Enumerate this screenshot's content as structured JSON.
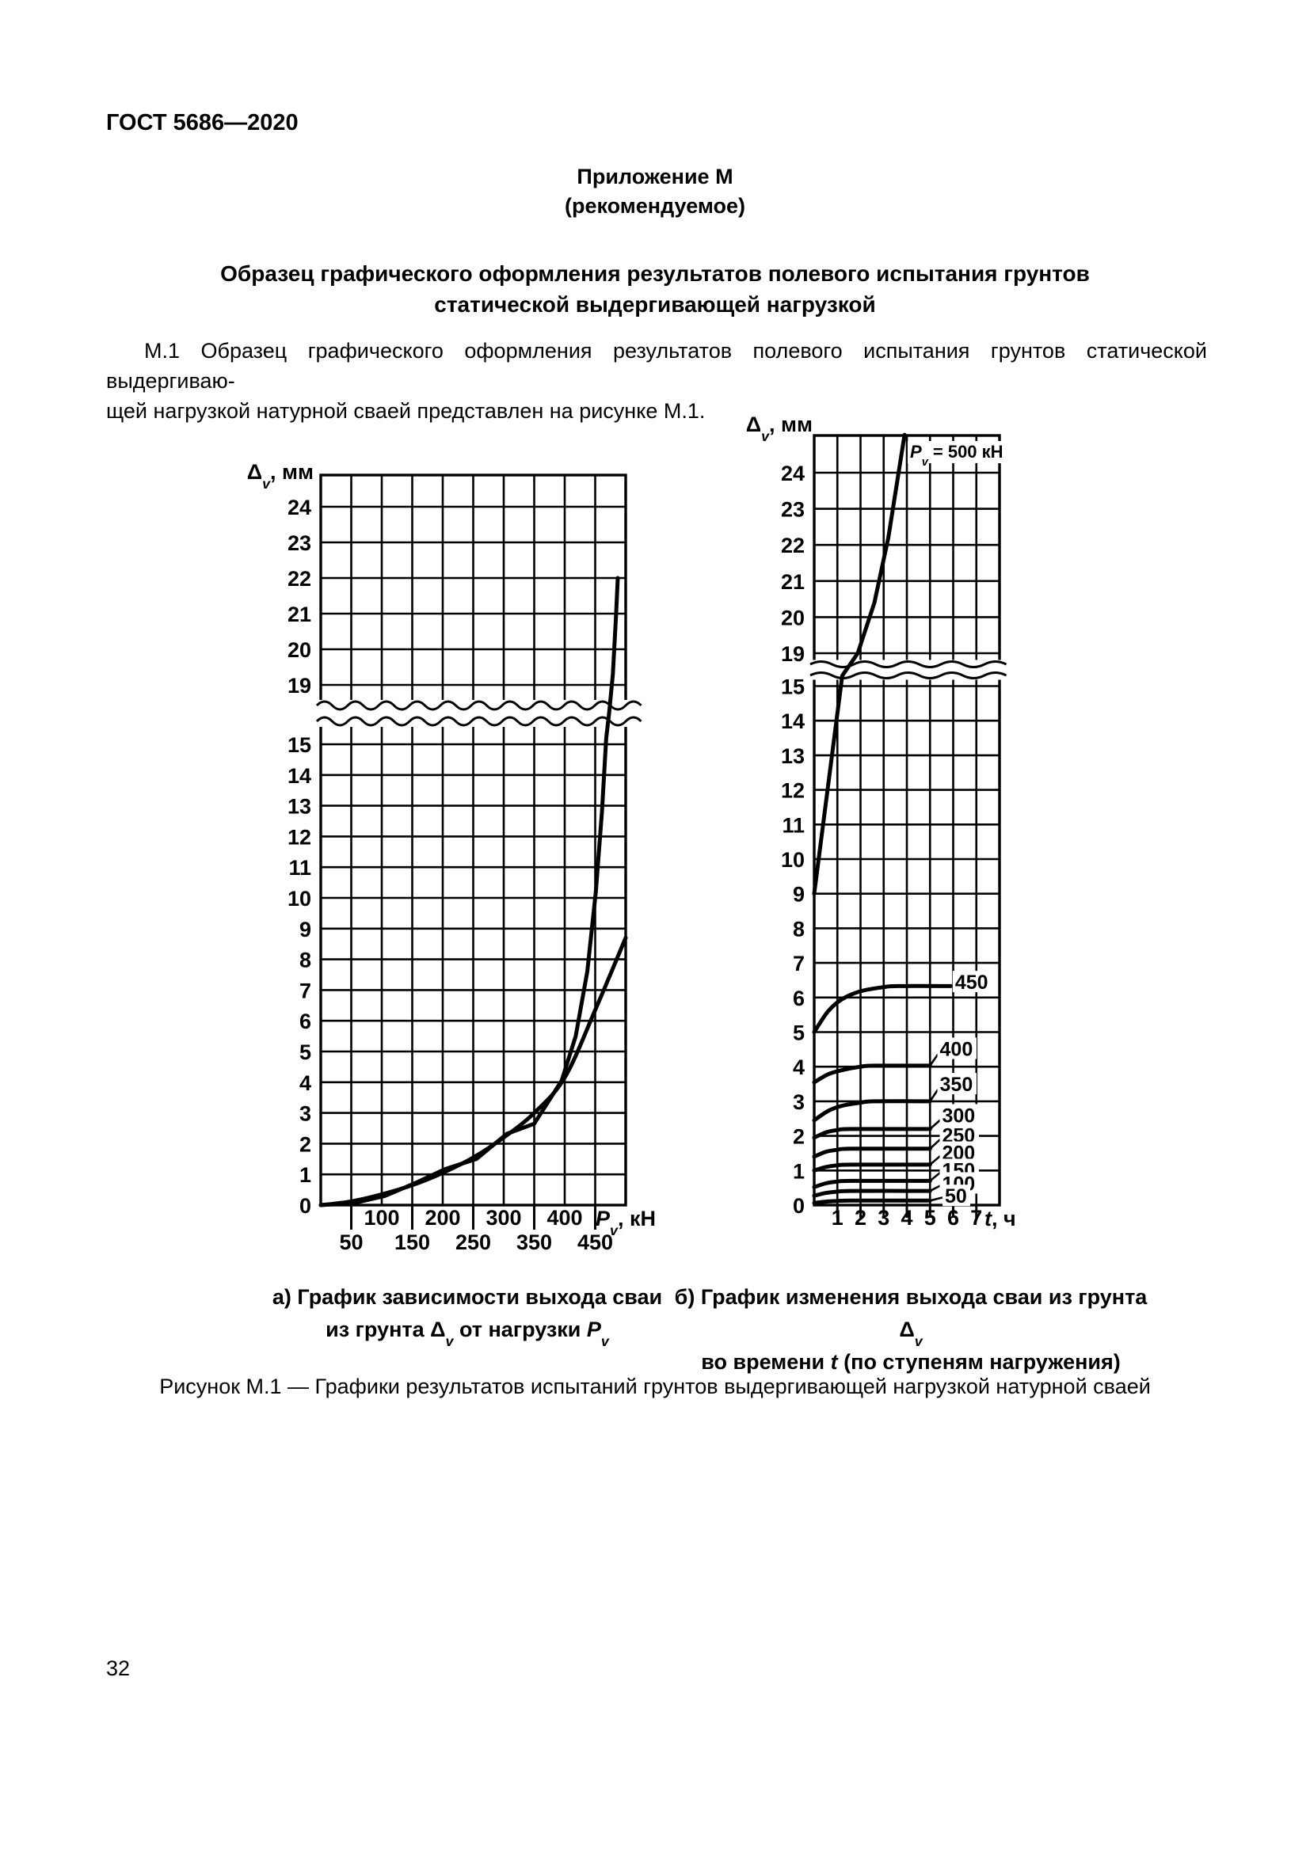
{
  "doc": {
    "number": "ГОСТ 5686—2020",
    "page_number": "32"
  },
  "appendix": {
    "title": "Приложение М",
    "note": "(рекомендуемое)"
  },
  "section_title": {
    "lines": [
      "Образец графического оформления результатов полевого испытания грунтов",
      "статической выдергивающей нагрузкой"
    ]
  },
  "paragraph": {
    "lines": [
      "М.1 Образец графического оформления результатов полевого испытания грунтов статической выдергиваю-",
      "щей нагрузкой натурной сваей представлен на рисунке М.1."
    ]
  },
  "captions": {
    "a": [
      "а) График зависимости выхода сваи",
      "из грунта Δ_v_ от нагрузки *P*_v_"
    ],
    "b": [
      "б) График изменения выхода сваи из грунта Δ_v_",
      "во времени *t* (по ступеням нагружения)"
    ]
  },
  "figure_caption": "Рисунок М.1 — Графики результатов испытаний грунтов выдергивающей нагрузкой натурной сваей",
  "chart_data": [
    {
      "id": "a",
      "type": "line",
      "title": "а) График зависимости выхода сваи из грунта Δv от нагрузки Pv",
      "xlabel": "*P*_v_, кН",
      "ylabel": "Δ_v_, мм",
      "xlim": [
        0,
        500
      ],
      "ylim": [
        0,
        25
      ],
      "y_axis_break": [
        15.75,
        18.42
      ],
      "grid": "on",
      "x_gridline_step_kN": 50,
      "x_tick_labels_row1": [
        100,
        200,
        300,
        400
      ],
      "x_tick_labels_row2": [
        50,
        150,
        250,
        350,
        450
      ],
      "y_tick_labels_lower": [
        0,
        1,
        2,
        3,
        4,
        5,
        6,
        7,
        8,
        9,
        10,
        11,
        12,
        13,
        14,
        15
      ],
      "y_tick_labels_upper": [
        19,
        20,
        21,
        22,
        23,
        24
      ],
      "series": [
        {
          "name": "кривая выхода сваи из грунта (плавная)",
          "smooth": true,
          "points": [
            [
              0,
              0
            ],
            [
              50,
              0.12
            ],
            [
              100,
              0.35
            ],
            [
              150,
              0.65
            ],
            [
              200,
              1.05
            ],
            [
              250,
              1.55
            ],
            [
              300,
              2.2
            ],
            [
              350,
              3.0
            ],
            [
              400,
              4.15
            ],
            [
              450,
              6.35
            ],
            [
              500,
              8.7
            ]
          ]
        },
        {
          "name": "ломаная по ступеням нагружения с ветвью срыва до 22 мм",
          "smooth": false,
          "points": [
            [
              0,
              0
            ],
            [
              55,
              0.07
            ],
            [
              105,
              0.3
            ],
            [
              155,
              0.72
            ],
            [
              205,
              1.18
            ],
            [
              255,
              1.5
            ],
            [
              305,
              2.32
            ],
            [
              350,
              2.65
            ],
            [
              395,
              4.05
            ],
            [
              418,
              5.5
            ],
            [
              437,
              7.6
            ],
            [
              451,
              10.2
            ],
            [
              461,
              12.8
            ],
            [
              468,
              15.2
            ],
            [
              473,
              17.3
            ],
            [
              479,
              19.3
            ],
            [
              484,
              20.9
            ],
            [
              487,
              22.0
            ]
          ]
        }
      ]
    },
    {
      "id": "b",
      "type": "line",
      "title": "б) График изменения выхода сваи из грунта Δv во времени t (по ступеням нагружения)",
      "xlabel": "*t*, ч",
      "ylabel": "Δ_v_, мм",
      "annotation": "*P*_v_ = 500 кН",
      "xlim": [
        0,
        8
      ],
      "ylim": [
        0,
        25.1
      ],
      "y_axis_break": [
        15.3,
        18.68
      ],
      "grid": "on",
      "x_tick_labels": [
        1,
        2,
        3,
        4,
        5,
        6,
        7
      ],
      "y_tick_labels_lower": [
        0,
        1,
        2,
        3,
        4,
        5,
        6,
        7,
        8,
        9,
        10,
        11,
        12,
        13,
        14,
        15
      ],
      "y_tick_labels_upper": [
        19,
        20,
        21,
        22,
        23,
        24
      ],
      "series": [
        {
          "load_kN": 500,
          "smooth": false,
          "points": [
            [
              0,
              9
            ],
            [
              1.21,
              15.3
            ],
            [
              1.88,
              19
            ],
            [
              2.6,
              20.4
            ],
            [
              3.2,
              22.2
            ],
            [
              3.9,
              25.05
            ]
          ]
        },
        {
          "load_kN": 450,
          "label": "450",
          "label_at": [
            6.08,
            6.45
          ],
          "smooth": true,
          "points": [
            [
              0,
              5.0
            ],
            [
              0.6,
              5.6
            ],
            [
              1.2,
              5.95
            ],
            [
              2,
              6.18
            ],
            [
              3,
              6.3
            ],
            [
              3.6,
              6.33
            ],
            [
              5.9,
              6.33
            ]
          ]
        },
        {
          "load_kN": 400,
          "label": "400",
          "label_at": [
            5.42,
            4.52
          ],
          "leader": [
            [
              5,
              4.03
            ],
            [
              5.34,
              4.36
            ]
          ],
          "smooth": true,
          "points": [
            [
              0,
              3.55
            ],
            [
              0.6,
              3.78
            ],
            [
              1.2,
              3.9
            ],
            [
              2,
              4.0
            ],
            [
              2.6,
              4.03
            ],
            [
              5,
              4.03
            ]
          ]
        },
        {
          "load_kN": 350,
          "label": "350",
          "label_at": [
            5.42,
            3.5
          ],
          "leader": [
            [
              5,
              3.0
            ],
            [
              5.34,
              3.34
            ]
          ],
          "smooth": true,
          "points": [
            [
              0,
              2.45
            ],
            [
              0.6,
              2.72
            ],
            [
              1.2,
              2.87
            ],
            [
              2,
              2.96
            ],
            [
              2.6,
              3.0
            ],
            [
              5,
              3.0
            ]
          ]
        },
        {
          "load_kN": 300,
          "label": "300",
          "label_at": [
            5.52,
            2.6
          ],
          "leader": [
            [
              5,
              2.2
            ],
            [
              5.44,
              2.46
            ]
          ],
          "smooth": true,
          "points": [
            [
              0,
              1.95
            ],
            [
              0.5,
              2.1
            ],
            [
              1,
              2.17
            ],
            [
              1.6,
              2.2
            ],
            [
              5,
              2.2
            ]
          ]
        },
        {
          "load_kN": 250,
          "label": "250",
          "label_at": [
            5.52,
            2.02
          ],
          "leader": [
            [
              5,
              1.63
            ],
            [
              5.44,
              1.9
            ]
          ],
          "smooth": true,
          "points": [
            [
              0,
              1.4
            ],
            [
              0.5,
              1.54
            ],
            [
              1,
              1.6
            ],
            [
              1.6,
              1.63
            ],
            [
              5,
              1.63
            ]
          ]
        },
        {
          "load_kN": 200,
          "label": "200",
          "label_at": [
            5.52,
            1.52
          ],
          "leader": [
            [
              5,
              1.17
            ],
            [
              5.44,
              1.42
            ]
          ],
          "smooth": true,
          "points": [
            [
              0,
              1.0
            ],
            [
              0.5,
              1.1
            ],
            [
              1,
              1.15
            ],
            [
              1.6,
              1.17
            ],
            [
              5,
              1.17
            ]
          ]
        },
        {
          "load_kN": 150,
          "label": "150",
          "label_at": [
            5.52,
            1.02
          ],
          "leader": [
            [
              5,
              0.7
            ],
            [
              5.44,
              0.94
            ]
          ],
          "smooth": true,
          "points": [
            [
              0,
              0.52
            ],
            [
              0.5,
              0.63
            ],
            [
              1,
              0.68
            ],
            [
              1.6,
              0.7
            ],
            [
              5,
              0.7
            ]
          ]
        },
        {
          "load_kN": 100,
          "label": "100",
          "label_at": [
            5.52,
            0.63
          ],
          "leader": [
            [
              5,
              0.41
            ],
            [
              5.44,
              0.56
            ]
          ],
          "smooth": true,
          "points": [
            [
              0,
              0.27
            ],
            [
              0.5,
              0.35
            ],
            [
              1,
              0.39
            ],
            [
              1.6,
              0.41
            ],
            [
              5,
              0.41
            ]
          ]
        },
        {
          "load_kN": 50,
          "label": "50",
          "label_at": [
            5.64,
            0.27
          ],
          "leader": [
            [
              5,
              0.13
            ],
            [
              5.54,
              0.22
            ]
          ],
          "smooth": true,
          "points": [
            [
              0,
              0.06
            ],
            [
              0.5,
              0.1
            ],
            [
              1,
              0.12
            ],
            [
              1.6,
              0.13
            ],
            [
              5,
              0.13
            ]
          ]
        }
      ]
    }
  ]
}
